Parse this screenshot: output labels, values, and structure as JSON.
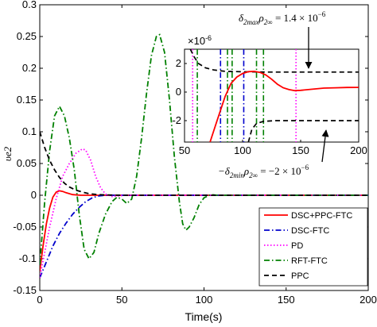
{
  "chart_data": {
    "type": "line",
    "xlabel": "Time(s)",
    "ylabel": "υe2",
    "xlim": [
      0,
      200
    ],
    "ylim": [
      -0.15,
      0.3
    ],
    "xticks": [
      "0",
      "50",
      "100",
      "150",
      "200"
    ],
    "yticks": [
      "-0.15",
      "-0.1",
      "-0.05",
      "0",
      "0.05",
      "0.1",
      "0.15",
      "0.2",
      "0.25",
      "0.3"
    ],
    "legend_position": "bottom-right",
    "series": [
      {
        "name": "DSC+PPC-FTC",
        "color": "#ff0000",
        "dash": "solid",
        "points": [
          [
            0,
            -0.12
          ],
          [
            2,
            -0.08
          ],
          [
            4,
            -0.045
          ],
          [
            6,
            -0.02
          ],
          [
            8,
            -0.003
          ],
          [
            10,
            0.005
          ],
          [
            12,
            0.007
          ],
          [
            14,
            0.006
          ],
          [
            16,
            0.004
          ],
          [
            20,
            0.001
          ],
          [
            25,
            0
          ],
          [
            200,
            0
          ]
        ]
      },
      {
        "name": "DSC-FTC",
        "color": "#0000cc",
        "dash": "dashdot",
        "points": [
          [
            0,
            -0.13
          ],
          [
            4,
            -0.105
          ],
          [
            8,
            -0.08
          ],
          [
            12,
            -0.06
          ],
          [
            16,
            -0.044
          ],
          [
            20,
            -0.03
          ],
          [
            24,
            -0.019
          ],
          [
            28,
            -0.01
          ],
          [
            32,
            -0.004
          ],
          [
            36,
            -0.001
          ],
          [
            40,
            0
          ],
          [
            200,
            0
          ]
        ]
      },
      {
        "name": "PD",
        "color": "#ff00ff",
        "dash": "dotted",
        "points": [
          [
            0,
            -0.13
          ],
          [
            3,
            -0.09
          ],
          [
            6,
            -0.05
          ],
          [
            10,
            -0.005
          ],
          [
            14,
            0.03
          ],
          [
            18,
            0.05
          ],
          [
            22,
            0.066
          ],
          [
            26,
            0.073
          ],
          [
            28,
            0.071
          ],
          [
            31,
            0.055
          ],
          [
            34,
            0.03
          ],
          [
            37,
            0.012
          ],
          [
            40,
            0.002
          ],
          [
            44,
            -0.002
          ],
          [
            48,
            -0.001
          ],
          [
            52,
            0
          ],
          [
            200,
            0
          ]
        ]
      },
      {
        "name": "RFT-FTC",
        "color": "#008000",
        "dash": "dashdot",
        "points": [
          [
            0,
            -0.11
          ],
          [
            3,
            -0.01
          ],
          [
            6,
            0.07
          ],
          [
            9,
            0.125
          ],
          [
            12,
            0.14
          ],
          [
            15,
            0.125
          ],
          [
            18,
            0.09
          ],
          [
            21,
            0.04
          ],
          [
            24,
            -0.03
          ],
          [
            27,
            -0.085
          ],
          [
            30,
            -0.1
          ],
          [
            33,
            -0.09
          ],
          [
            36,
            -0.06
          ],
          [
            40,
            -0.03
          ],
          [
            44,
            -0.01
          ],
          [
            47,
            -0.003
          ],
          [
            50,
            -0.006
          ],
          [
            53,
            -0.013
          ],
          [
            56,
            -0.006
          ],
          [
            59,
            0.03
          ],
          [
            62,
            0.09
          ],
          [
            65,
            0.16
          ],
          [
            68,
            0.22
          ],
          [
            71,
            0.25
          ],
          [
            73,
            0.253
          ],
          [
            76,
            0.225
          ],
          [
            79,
            0.15
          ],
          [
            82,
            0.06
          ],
          [
            85,
            -0.01
          ],
          [
            87,
            -0.045
          ],
          [
            89,
            -0.055
          ],
          [
            91,
            -0.05
          ],
          [
            94,
            -0.035
          ],
          [
            97,
            -0.015
          ],
          [
            100,
            -0.004
          ],
          [
            104,
            0.001
          ],
          [
            108,
            0
          ],
          [
            200,
            0
          ]
        ]
      },
      {
        "name": "PPC",
        "color": "#000000",
        "dash": "dashed",
        "points": [
          [
            0,
            0.1
          ],
          [
            3,
            0.075
          ],
          [
            6,
            0.055
          ],
          [
            9,
            0.04
          ],
          [
            12,
            0.028
          ],
          [
            15,
            0.019
          ],
          [
            18,
            0.013
          ],
          [
            22,
            0.008
          ],
          [
            26,
            0.005
          ],
          [
            30,
            0.0025
          ],
          [
            35,
            0.001
          ],
          [
            40,
            0.0005
          ],
          [
            50,
            0
          ],
          [
            200,
            0
          ]
        ]
      }
    ],
    "inset": {
      "xlim": [
        50,
        200
      ],
      "ylim": [
        -3.5,
        3
      ],
      "scale_label": "×10",
      "scale_exp": "-6",
      "xticks": [
        "50",
        "100",
        "150",
        "200"
      ],
      "yticks": [
        "-2",
        "0",
        "2"
      ],
      "bounds": {
        "upper": 1.4,
        "lower": -2
      },
      "red_curve": [
        [
          72,
          -3.5
        ],
        [
          78,
          -2
        ],
        [
          85,
          -0.3
        ],
        [
          90,
          0.6
        ],
        [
          95,
          1.05
        ],
        [
          100,
          1.3
        ],
        [
          105,
          1.43
        ],
        [
          110,
          1.45
        ],
        [
          115,
          1.38
        ],
        [
          120,
          1.2
        ],
        [
          125,
          0.9
        ],
        [
          130,
          0.55
        ],
        [
          135,
          0.3
        ],
        [
          140,
          0.17
        ],
        [
          145,
          0.1
        ],
        [
          150,
          0.12
        ],
        [
          160,
          0.2
        ],
        [
          170,
          0.28
        ],
        [
          180,
          0.3
        ],
        [
          190,
          0.32
        ],
        [
          200,
          0.33
        ]
      ],
      "upper_dashed": [
        [
          55,
          3
        ],
        [
          58,
          2.5
        ],
        [
          62,
          2
        ],
        [
          68,
          1.7
        ],
        [
          75,
          1.55
        ],
        [
          85,
          1.45
        ],
        [
          100,
          1.42
        ],
        [
          120,
          1.4
        ],
        [
          200,
          1.4
        ]
      ],
      "lower_dashed": [
        [
          105,
          -3.5
        ],
        [
          108,
          -2.6
        ],
        [
          112,
          -2.2
        ],
        [
          118,
          -2.05
        ],
        [
          128,
          -2.0
        ],
        [
          140,
          -2.0
        ],
        [
          200,
          -2.0
        ]
      ],
      "vertical_crossings": [
        {
          "series": "PD",
          "x": [
            57,
            146
          ]
        },
        {
          "series": "DSC-FTC",
          "x": [
            81,
            101
          ]
        },
        {
          "series": "RFT-FTC",
          "x": [
            61,
            87,
            91,
            112,
            118
          ]
        }
      ]
    },
    "annotations": [
      {
        "base": "δ",
        "sub": "2max",
        "mid": "ρ",
        "sub2": "2∞",
        "rhs": " = 1.4 × 10",
        "exp": "−6"
      },
      {
        "base": "−δ",
        "sub": "2min",
        "mid": "ρ",
        "sub2": "2∞",
        "rhs": " = −2 × 10",
        "exp": "−6"
      }
    ]
  }
}
